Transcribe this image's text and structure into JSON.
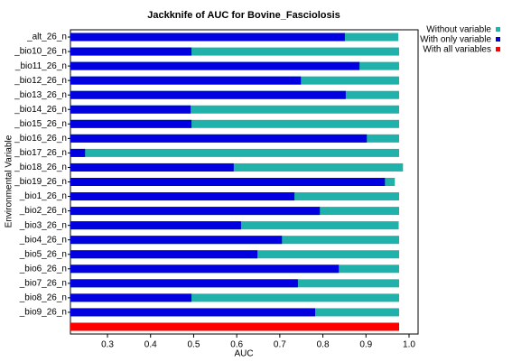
{
  "chart_data": {
    "type": "bar",
    "orientation": "horizontal",
    "title": "Jackknife of AUC for Bovine_Fasciolosis",
    "x_label": "AUC",
    "y_label": "Environmental Variable",
    "categories": [
      "_alt_26_n",
      "_bio10_26_n",
      "_bio11_26_n",
      "_bio12_26_n",
      "_bio13_26_n",
      "_bio14_26_n",
      "_bio15_26_n",
      "_bio16_26_n",
      "_bio17_26_n",
      "_bio18_26_n",
      "_bio19_26_n",
      "_bio1_26_n",
      "_bio2_26_n",
      "_bio3_26_n",
      "_bio4_26_n",
      "_bio5_26_n",
      "_bio6_26_n",
      "_bio7_26_n",
      "_bio8_26_n",
      "_bio9_26_n",
      null
    ],
    "series": [
      {
        "name": "Without variable",
        "color": "#20b2aa",
        "values": [
          0.975,
          0.977,
          0.977,
          0.977,
          0.977,
          0.977,
          0.977,
          0.977,
          0.977,
          0.986,
          0.967,
          0.977,
          0.977,
          0.976,
          0.977,
          0.977,
          0.977,
          0.977,
          0.977,
          0.977,
          null
        ]
      },
      {
        "name": "With only variable",
        "color": "#0000e0",
        "values": [
          0.851,
          0.495,
          0.885,
          0.749,
          0.853,
          0.493,
          0.495,
          0.902,
          0.248,
          0.593,
          0.944,
          0.734,
          0.793,
          0.61,
          0.705,
          0.648,
          0.837,
          0.742,
          0.495,
          0.782,
          null
        ]
      },
      {
        "name": "With all variables",
        "color": "#ff0000",
        "values": [
          null,
          null,
          null,
          null,
          null,
          null,
          null,
          null,
          null,
          null,
          null,
          null,
          null,
          null,
          null,
          null,
          null,
          null,
          null,
          null,
          0.977
        ]
      }
    ],
    "xlim": [
      0.214,
      1.021
    ],
    "xticks": [
      0.3,
      0.4,
      0.5,
      0.6,
      0.7,
      0.8,
      0.9,
      {
        "value": 1.0,
        "label": "1.0"
      }
    ],
    "legend": "upper right"
  }
}
